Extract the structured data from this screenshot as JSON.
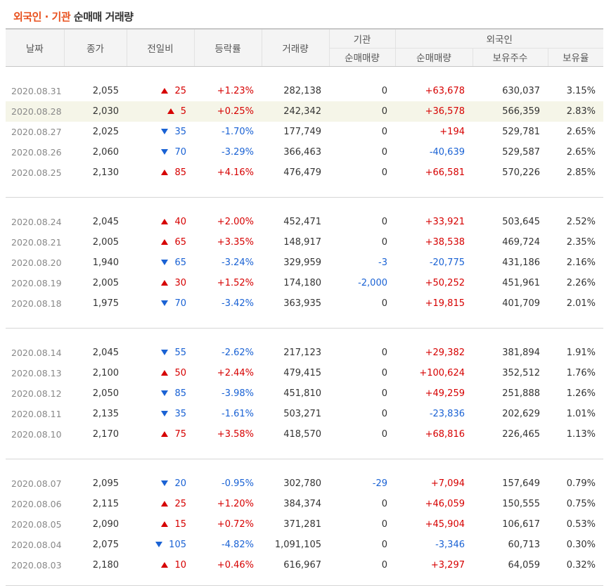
{
  "title": {
    "part1": "외국인 · 기관",
    "part2": "순매매 거래량"
  },
  "headers": {
    "date": "날짜",
    "close": "종가",
    "change": "전일비",
    "rate": "등락률",
    "volume": "거래량",
    "institution": "기관",
    "inst_net": "순매매량",
    "foreign": "외국인",
    "frgn_net": "순매매량",
    "frgn_holdings": "보유주수",
    "frgn_ratio": "보유율"
  },
  "groups": [
    [
      {
        "date": "2020.08.31",
        "close": "2,055",
        "dir": "up",
        "change": "25",
        "rate": "+1.23%",
        "volume": "282,138",
        "inst": "0",
        "frgn": "+63,678",
        "hold": "630,037",
        "ratio": "3.15%"
      },
      {
        "date": "2020.08.28",
        "close": "2,030",
        "dir": "up",
        "change": "5",
        "rate": "+0.25%",
        "volume": "242,342",
        "inst": "0",
        "frgn": "+36,578",
        "hold": "566,359",
        "ratio": "2.83%"
      },
      {
        "date": "2020.08.27",
        "close": "2,025",
        "dir": "down",
        "change": "35",
        "rate": "-1.70%",
        "volume": "177,749",
        "inst": "0",
        "frgn": "+194",
        "hold": "529,781",
        "ratio": "2.65%"
      },
      {
        "date": "2020.08.26",
        "close": "2,060",
        "dir": "down",
        "change": "70",
        "rate": "-3.29%",
        "volume": "366,463",
        "inst": "0",
        "frgn": "-40,639",
        "hold": "529,587",
        "ratio": "2.65%"
      },
      {
        "date": "2020.08.25",
        "close": "2,130",
        "dir": "up",
        "change": "85",
        "rate": "+4.16%",
        "volume": "476,479",
        "inst": "0",
        "frgn": "+66,581",
        "hold": "570,226",
        "ratio": "2.85%"
      }
    ],
    [
      {
        "date": "2020.08.24",
        "close": "2,045",
        "dir": "up",
        "change": "40",
        "rate": "+2.00%",
        "volume": "452,471",
        "inst": "0",
        "frgn": "+33,921",
        "hold": "503,645",
        "ratio": "2.52%"
      },
      {
        "date": "2020.08.21",
        "close": "2,005",
        "dir": "up",
        "change": "65",
        "rate": "+3.35%",
        "volume": "148,917",
        "inst": "0",
        "frgn": "+38,538",
        "hold": "469,724",
        "ratio": "2.35%"
      },
      {
        "date": "2020.08.20",
        "close": "1,940",
        "dir": "down",
        "change": "65",
        "rate": "-3.24%",
        "volume": "329,959",
        "inst": "-3",
        "frgn": "-20,775",
        "hold": "431,186",
        "ratio": "2.16%"
      },
      {
        "date": "2020.08.19",
        "close": "2,005",
        "dir": "up",
        "change": "30",
        "rate": "+1.52%",
        "volume": "174,180",
        "inst": "-2,000",
        "frgn": "+50,252",
        "hold": "451,961",
        "ratio": "2.26%"
      },
      {
        "date": "2020.08.18",
        "close": "1,975",
        "dir": "down",
        "change": "70",
        "rate": "-3.42%",
        "volume": "363,935",
        "inst": "0",
        "frgn": "+19,815",
        "hold": "401,709",
        "ratio": "2.01%"
      }
    ],
    [
      {
        "date": "2020.08.14",
        "close": "2,045",
        "dir": "down",
        "change": "55",
        "rate": "-2.62%",
        "volume": "217,123",
        "inst": "0",
        "frgn": "+29,382",
        "hold": "381,894",
        "ratio": "1.91%"
      },
      {
        "date": "2020.08.13",
        "close": "2,100",
        "dir": "up",
        "change": "50",
        "rate": "+2.44%",
        "volume": "479,415",
        "inst": "0",
        "frgn": "+100,624",
        "hold": "352,512",
        "ratio": "1.76%"
      },
      {
        "date": "2020.08.12",
        "close": "2,050",
        "dir": "down",
        "change": "85",
        "rate": "-3.98%",
        "volume": "451,810",
        "inst": "0",
        "frgn": "+49,259",
        "hold": "251,888",
        "ratio": "1.26%"
      },
      {
        "date": "2020.08.11",
        "close": "2,135",
        "dir": "down",
        "change": "35",
        "rate": "-1.61%",
        "volume": "503,271",
        "inst": "0",
        "frgn": "-23,836",
        "hold": "202,629",
        "ratio": "1.01%"
      },
      {
        "date": "2020.08.10",
        "close": "2,170",
        "dir": "up",
        "change": "75",
        "rate": "+3.58%",
        "volume": "418,570",
        "inst": "0",
        "frgn": "+68,816",
        "hold": "226,465",
        "ratio": "1.13%"
      }
    ],
    [
      {
        "date": "2020.08.07",
        "close": "2,095",
        "dir": "down",
        "change": "20",
        "rate": "-0.95%",
        "volume": "302,780",
        "inst": "-29",
        "frgn": "+7,094",
        "hold": "157,649",
        "ratio": "0.79%"
      },
      {
        "date": "2020.08.06",
        "close": "2,115",
        "dir": "up",
        "change": "25",
        "rate": "+1.20%",
        "volume": "384,374",
        "inst": "0",
        "frgn": "+46,059",
        "hold": "150,555",
        "ratio": "0.75%"
      },
      {
        "date": "2020.08.05",
        "close": "2,090",
        "dir": "up",
        "change": "15",
        "rate": "+0.72%",
        "volume": "371,281",
        "inst": "0",
        "frgn": "+45,904",
        "hold": "106,617",
        "ratio": "0.53%"
      },
      {
        "date": "2020.08.04",
        "close": "2,075",
        "dir": "down",
        "change": "105",
        "rate": "-4.82%",
        "volume": "1,091,105",
        "inst": "0",
        "frgn": "-3,346",
        "hold": "60,713",
        "ratio": "0.30%"
      },
      {
        "date": "2020.08.03",
        "close": "2,180",
        "dir": "up",
        "change": "10",
        "rate": "+0.46%",
        "volume": "616,967",
        "inst": "0",
        "frgn": "+3,297",
        "hold": "64,059",
        "ratio": "0.32%"
      }
    ]
  ],
  "selected_date": "2020.08.28",
  "colors": {
    "accent": "#e8501d",
    "up": "#d60000",
    "down": "#1a62d4",
    "selected_row": "#f5f5e8"
  },
  "icons": {
    "up": "triangle-up-icon",
    "down": "triangle-down-icon"
  }
}
